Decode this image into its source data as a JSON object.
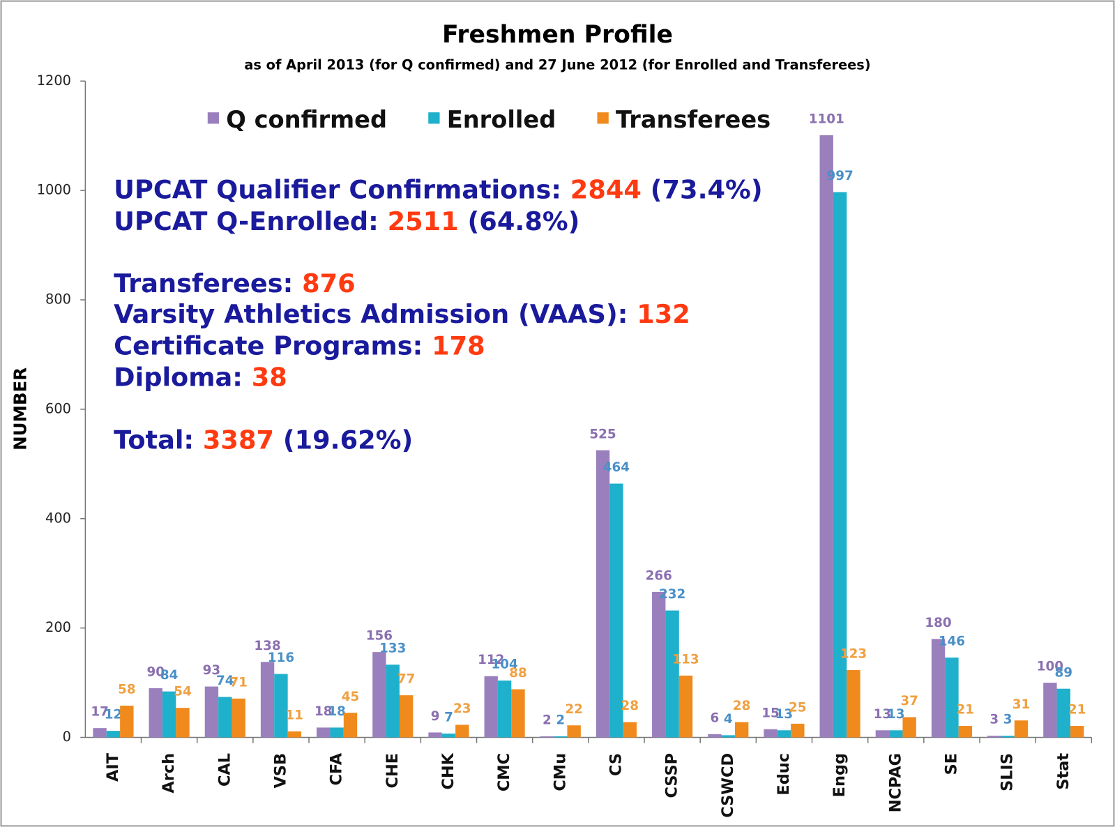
{
  "chart_data": {
    "type": "bar",
    "title": "Freshmen Profile",
    "subtitle": "as of April 2013 (for Q confirmed) and 27 June 2012 (for Enrolled and Transferees)",
    "y_label": "NUMBER",
    "categories": [
      "AIT",
      "Arch",
      "CAL",
      "VSB",
      "CFA",
      "CHE",
      "CHK",
      "CMC",
      "CMu",
      "CS",
      "CSSP",
      "CSWCD",
      "Educ",
      "Engg",
      "NCPAG",
      "SE",
      "SLIS",
      "Stat"
    ],
    "series": [
      {
        "name": "Q confirmed",
        "color": "#9a7fbd",
        "label_color": "#8a6fb0",
        "values": [
          17,
          90,
          93,
          138,
          18,
          156,
          9,
          112,
          2,
          525,
          266,
          6,
          15,
          1101,
          13,
          180,
          3,
          100
        ]
      },
      {
        "name": "Enrolled",
        "color": "#1fb0cc",
        "label_color": "#4a90c8",
        "values": [
          12,
          84,
          74,
          116,
          18,
          133,
          7,
          104,
          2,
          464,
          232,
          4,
          13,
          997,
          13,
          146,
          3,
          89
        ]
      },
      {
        "name": "Transferees",
        "color": "#f08a1c",
        "label_color": "#f0a040",
        "values": [
          58,
          54,
          71,
          11,
          45,
          77,
          23,
          88,
          22,
          28,
          113,
          28,
          25,
          123,
          37,
          21,
          31,
          21
        ]
      }
    ],
    "ylim": [
      0,
      1200
    ],
    "yticks": [
      0,
      200,
      400,
      600,
      800,
      1000,
      1200
    ],
    "legend": "top",
    "annotations": [
      {
        "label": "UPCAT Qualifier Confirmations:",
        "number": 2844,
        "note": "(73.4%)"
      },
      {
        "label": "UPCAT Q-Enrolled:",
        "number": 2511,
        "note": "(64.8%)"
      },
      {
        "label": "Transferees:",
        "number": 876
      },
      {
        "label": "Varsity Athletics Admission (VAAS):",
        "number": 132
      },
      {
        "label": "Certificate Programs:",
        "number": 178
      },
      {
        "label": "Diploma:",
        "number": 38
      },
      {
        "label": "Total:",
        "number": 3387,
        "note": "(19.62%)"
      }
    ]
  }
}
